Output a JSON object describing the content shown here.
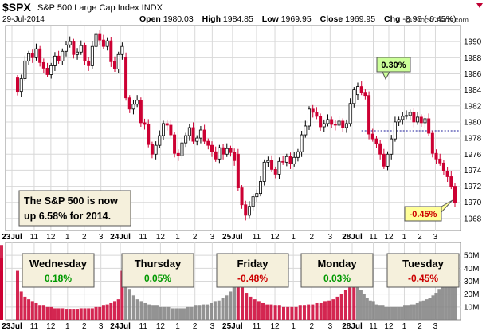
{
  "header": {
    "symbol": "$SPX",
    "name": "S&P 500 Large Cap Index  INDX",
    "date": "29-Jul-2014",
    "open_label": "Open",
    "open": "1980.03",
    "high_label": "High",
    "high": "1984.85",
    "low_label": "Low",
    "low": "1969.95",
    "close_label": "Close",
    "close": "1969.95",
    "chg_label": "Chg",
    "chg": "-8.96 (-0.45%)",
    "watermark": "@ StockCharts.com"
  },
  "colors": {
    "up": "#000000",
    "down": "#cc0033",
    "gray_vol": "#808080",
    "prev_close": "#1a1a99",
    "grid": "#d8d8d8",
    "note_bg": "#f5f0dc",
    "green_text": "#009900",
    "red_text": "#cc0000"
  },
  "chart_data": [
    {
      "type": "candlestick",
      "title": "",
      "ylim": [
        1966.5,
        1992
      ],
      "y_ticks": [
        1968,
        1970,
        1972,
        1974,
        1976,
        1978,
        1980,
        1982,
        1984,
        1986,
        1988,
        1990
      ],
      "x_tick_labels": [
        "23Jul",
        "11",
        "12",
        "1",
        "2",
        "3",
        "24Jul",
        "11",
        "12",
        "1",
        "2",
        "3",
        "25Jul",
        "11",
        "12",
        "1",
        "2",
        "3",
        "28Jul",
        "11",
        "12",
        "1",
        "2",
        "3",
        "29Jul",
        "11",
        "12",
        "1",
        "2",
        "3"
      ],
      "days": [
        "23Jul",
        "24Jul",
        "25Jul",
        "28Jul",
        "29Jul"
      ],
      "prev_close_level": 1978.9,
      "annotations": [
        {
          "text": "0.30%",
          "style": "green-callout"
        },
        {
          "text": "-0.45%",
          "style": "yellow-callout"
        }
      ],
      "note": [
        "The S&P 500 is now",
        "up 6.58% for 2014."
      ],
      "closes": [
        1983.8,
        1985.4,
        1987.6,
        1988.5,
        1988.0,
        1989.1,
        1987.4,
        1986.7,
        1985.9,
        1987.0,
        1988.2,
        1987.6,
        1988.8,
        1989.6,
        1990.0,
        1988.4,
        1988.7,
        1989.5,
        1987.6,
        1987.0,
        1989.4,
        1990.9,
        1990.2,
        1989.4,
        1990.1,
        1987.5,
        1986.6,
        1988.4,
        1989.4,
        1983.0,
        1981.6,
        1982.2,
        1982.7,
        1979.9,
        1979.7,
        1977.2,
        1976.0,
        1977.1,
        1978.3,
        1979.8,
        1979.6,
        1978.4,
        1976.1,
        1975.8,
        1977.4,
        1978.3,
        1979.3,
        1977.6,
        1978.0,
        1979.0,
        1977.6,
        1977.1,
        1976.3,
        1975.4,
        1976.8,
        1976.0,
        1976.7,
        1976.2,
        1975.2,
        1971.8,
        1969.7,
        1968.4,
        1969.5,
        1970.7,
        1971.1,
        1972.6,
        1975.0,
        1975.2,
        1974.1,
        1973.5,
        1975.1,
        1975.0,
        1975.7,
        1974.8,
        1975.6,
        1976.3,
        1978.4,
        1979.5,
        1981.6,
        1981.2,
        1980.7,
        1979.4,
        1979.8,
        1980.3,
        1979.7,
        1979.6,
        1980.1,
        1979.3,
        1979.8,
        1982.3,
        1984.0,
        1984.4,
        1983.7,
        1983.3,
        1978.5,
        1977.9,
        1977.3,
        1976.0,
        1974.5,
        1976.0,
        1977.9,
        1980.0,
        1980.3,
        1980.7,
        1980.8,
        1981.2,
        1980.0,
        1980.6,
        1979.9,
        1980.4,
        1978.6,
        1976.1,
        1975.4,
        1974.9,
        1973.9,
        1973.2,
        1972.0,
        1969.95
      ],
      "day_breaks": [
        29,
        59,
        91
      ]
    },
    {
      "type": "bar",
      "title": "Volume",
      "ylim": [
        0,
        60
      ],
      "y_ticks_label": [
        "10M",
        "20M",
        "30M",
        "40M",
        "50M"
      ],
      "y_ticks": [
        10,
        20,
        30,
        40,
        50
      ],
      "labels": [
        {
          "day": "Wednesday",
          "change": "0.18%",
          "dir": "up"
        },
        {
          "day": "Thursday",
          "change": "0.05%",
          "dir": "up"
        },
        {
          "day": "Friday",
          "change": "-0.48%",
          "dir": "down"
        },
        {
          "day": "Monday",
          "change": "0.03%",
          "dir": "up"
        },
        {
          "day": "Tuesday",
          "change": "-0.45%",
          "dir": "down"
        }
      ],
      "day_colors": [
        "#cc0033",
        "#808080",
        "#cc0033",
        "#808080",
        "#cc0033"
      ],
      "day_volumes": [
        [
          38,
          22,
          18,
          16,
          14,
          13,
          11,
          11,
          10,
          10,
          9,
          9,
          9,
          8,
          8,
          8,
          8,
          9,
          9,
          9,
          9,
          10,
          10,
          11,
          12,
          13,
          14,
          16,
          38
        ],
        [
          40,
          24,
          19,
          16,
          14,
          13,
          12,
          11,
          11,
          10,
          10,
          10,
          9,
          9,
          9,
          9,
          10,
          10,
          11,
          11,
          12,
          12,
          13,
          14,
          15,
          17,
          19,
          22,
          39
        ],
        [
          50,
          26,
          21,
          18,
          16,
          14,
          13,
          12,
          12,
          11,
          11,
          10,
          10,
          10,
          10,
          11,
          11,
          12,
          12,
          13,
          13,
          14,
          15,
          16,
          18,
          20,
          23,
          26,
          48
        ],
        [
          42,
          23,
          20,
          17,
          15,
          14,
          12,
          11,
          11,
          10,
          10,
          10,
          10,
          10,
          10,
          11,
          11,
          12,
          12,
          13,
          14,
          15,
          16,
          17,
          19,
          21,
          24,
          28,
          35,
          38,
          44,
          40
        ],
        [
          48,
          28,
          23,
          20,
          18,
          16,
          15,
          14,
          13,
          12,
          12,
          11,
          11,
          11,
          12,
          12,
          13,
          14,
          15,
          16,
          17,
          19,
          20,
          22,
          25,
          29,
          38,
          58
        ]
      ]
    }
  ]
}
